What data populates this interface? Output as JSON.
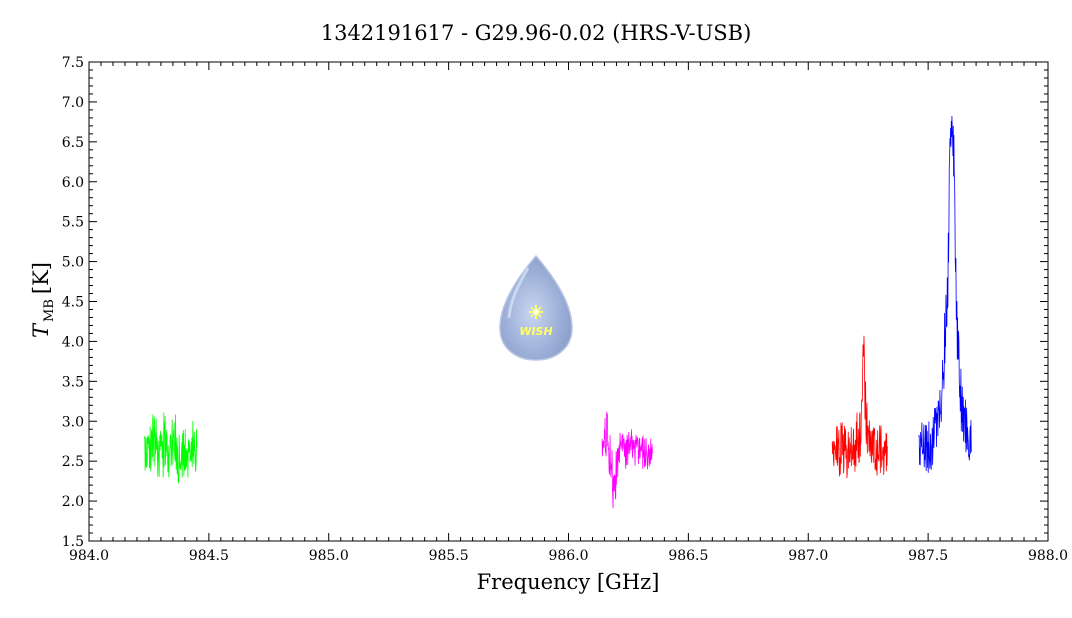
{
  "chart_data": {
    "type": "line",
    "title": "1342191617 - G29.96-0.02 (HRS-V-USB)",
    "xlabel": "Frequency [GHz]",
    "ylabel_main": "T",
    "ylabel_sub": "MB",
    "ylabel_unit": "[K]",
    "xlim": [
      984.0,
      988.0
    ],
    "ylim": [
      1.5,
      7.5
    ],
    "xticks": [
      984.0,
      984.5,
      985.0,
      985.5,
      986.0,
      986.5,
      987.0,
      987.5,
      988.0
    ],
    "xtick_labels": [
      "984.0",
      "984.5",
      "985.0",
      "985.5",
      "986.0",
      "986.5",
      "987.0",
      "987.5",
      "988.0"
    ],
    "yticks": [
      1.5,
      2.0,
      2.5,
      3.0,
      3.5,
      4.0,
      4.5,
      5.0,
      5.5,
      6.0,
      6.5,
      7.0,
      7.5
    ],
    "ytick_labels": [
      "1.5",
      "2.0",
      "2.5",
      "3.0",
      "3.5",
      "4.0",
      "4.5",
      "5.0",
      "5.5",
      "6.0",
      "6.5",
      "7.0",
      "7.5"
    ],
    "grid": false,
    "series": [
      {
        "color": "#00ff00",
        "x": [
          984.23,
          984.25,
          984.27,
          984.29,
          984.31,
          984.33,
          984.35,
          984.37,
          984.39,
          984.41,
          984.43,
          984.45
        ],
        "y": [
          2.7,
          2.6,
          2.8,
          2.5,
          2.7,
          2.6,
          2.8,
          2.6,
          2.7,
          2.5,
          2.7,
          2.6
        ],
        "noise_min": [
          2.3,
          2.3,
          2.2,
          2.3,
          2.1,
          2.3,
          2.3,
          2.2,
          2.3,
          2.3,
          2.3,
          2.3
        ],
        "noise_max": [
          3.0,
          3.0,
          3.1,
          3.0,
          3.15,
          3.1,
          3.0,
          3.15,
          3.1,
          3.0,
          3.0,
          3.0
        ]
      },
      {
        "color": "#ff00ff",
        "x": [
          986.14,
          986.16,
          986.18,
          986.19,
          986.2,
          986.22,
          986.24,
          986.26,
          986.28,
          986.3,
          986.32,
          986.35
        ],
        "y": [
          2.7,
          2.9,
          2.3,
          2.0,
          2.4,
          2.7,
          2.6,
          2.7,
          2.6,
          2.7,
          2.6,
          2.6
        ],
        "noise_min": [
          2.5,
          2.5,
          2.0,
          1.85,
          2.1,
          2.4,
          2.4,
          2.4,
          2.4,
          2.4,
          2.4,
          2.4
        ],
        "noise_max": [
          2.9,
          3.15,
          2.8,
          2.5,
          2.7,
          2.9,
          2.9,
          2.9,
          2.85,
          2.9,
          2.9,
          2.8
        ]
      },
      {
        "color": "#ff0000",
        "x": [
          987.1,
          987.12,
          987.14,
          987.16,
          987.18,
          987.2,
          987.22,
          987.23,
          987.24,
          987.26,
          987.28,
          987.3,
          987.33
        ],
        "y": [
          2.6,
          2.7,
          2.6,
          2.6,
          2.7,
          2.7,
          2.9,
          4.2,
          3.0,
          2.7,
          2.6,
          2.7,
          2.6
        ],
        "noise_min": [
          2.3,
          2.3,
          2.2,
          2.1,
          2.3,
          2.3,
          2.5,
          3.6,
          2.6,
          2.3,
          2.2,
          2.2,
          2.3
        ],
        "noise_max": [
          2.9,
          2.95,
          3.0,
          2.9,
          2.95,
          3.05,
          3.4,
          4.25,
          3.5,
          2.95,
          2.9,
          2.95,
          2.9
        ]
      },
      {
        "color": "#0000ff",
        "x": [
          987.46,
          987.48,
          987.5,
          987.52,
          987.54,
          987.56,
          987.58,
          987.59,
          987.6,
          987.61,
          987.62,
          987.64,
          987.66,
          987.68
        ],
        "y": [
          2.65,
          2.7,
          2.7,
          2.8,
          3.0,
          3.4,
          4.6,
          6.2,
          6.8,
          6.0,
          4.2,
          3.2,
          2.9,
          2.8
        ],
        "noise_min": [
          2.4,
          2.3,
          2.2,
          2.4,
          2.7,
          3.1,
          4.0,
          5.6,
          6.4,
          5.4,
          3.7,
          2.8,
          2.5,
          2.5
        ],
        "noise_max": [
          2.95,
          3.0,
          3.1,
          3.1,
          3.3,
          3.8,
          5.2,
          6.6,
          6.9,
          6.5,
          4.8,
          3.6,
          3.3,
          3.2
        ]
      }
    ]
  },
  "watermark": {
    "text": "WISH",
    "drop_color": "#8ea2cc",
    "star_color": "#ffff66"
  }
}
